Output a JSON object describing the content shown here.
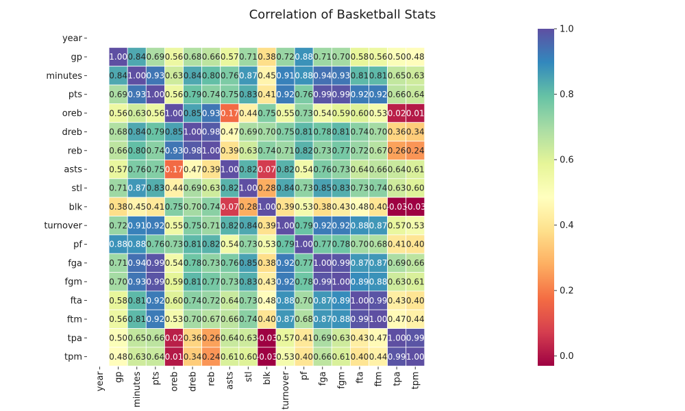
{
  "chart_data": {
    "type": "heatmap",
    "title": "Correlation of Basketball Stats",
    "xlabel": "",
    "ylabel": "",
    "row_labels": [
      "year",
      "gp",
      "minutes",
      "pts",
      "oreb",
      "dreb",
      "reb",
      "asts",
      "stl",
      "blk",
      "turnover",
      "pf",
      "fga",
      "fgm",
      "fta",
      "ftm",
      "tpa",
      "tpm"
    ],
    "col_labels": [
      "year",
      "gp",
      "minutes",
      "pts",
      "oreb",
      "dreb",
      "reb",
      "asts",
      "stl",
      "blk",
      "turnover",
      "pf",
      "fga",
      "fgm",
      "fta",
      "ftm",
      "tpa",
      "tpm"
    ],
    "values": [
      [
        null,
        null,
        null,
        null,
        null,
        null,
        null,
        null,
        null,
        null,
        null,
        null,
        null,
        null,
        null,
        null,
        null,
        null
      ],
      [
        null,
        1.0,
        0.84,
        0.69,
        0.56,
        0.68,
        0.66,
        0.57,
        0.71,
        0.38,
        0.72,
        0.88,
        0.71,
        0.7,
        0.58,
        0.56,
        0.5,
        0.48
      ],
      [
        null,
        0.84,
        1.0,
        0.93,
        0.63,
        0.84,
        0.8,
        0.76,
        0.87,
        0.45,
        0.91,
        0.88,
        0.94,
        0.93,
        0.81,
        0.81,
        0.65,
        0.63
      ],
      [
        null,
        0.69,
        0.93,
        1.0,
        0.56,
        0.79,
        0.74,
        0.75,
        0.83,
        0.41,
        0.92,
        0.76,
        0.99,
        0.99,
        0.92,
        0.92,
        0.66,
        0.64
      ],
      [
        null,
        0.56,
        0.63,
        0.56,
        1.0,
        0.85,
        0.93,
        0.17,
        0.44,
        0.75,
        0.55,
        0.73,
        0.54,
        0.59,
        0.6,
        0.53,
        0.02,
        0.01
      ],
      [
        null,
        0.68,
        0.84,
        0.79,
        0.85,
        1.0,
        0.98,
        0.47,
        0.69,
        0.7,
        0.75,
        0.81,
        0.78,
        0.81,
        0.74,
        0.7,
        0.36,
        0.34
      ],
      [
        null,
        0.66,
        0.8,
        0.74,
        0.93,
        0.98,
        1.0,
        0.39,
        0.63,
        0.74,
        0.71,
        0.82,
        0.73,
        0.77,
        0.72,
        0.67,
        0.26,
        0.24
      ],
      [
        null,
        0.57,
        0.76,
        0.75,
        0.17,
        0.47,
        0.39,
        1.0,
        0.82,
        0.07,
        0.82,
        0.54,
        0.76,
        0.73,
        0.64,
        0.66,
        0.64,
        0.61
      ],
      [
        null,
        0.71,
        0.87,
        0.83,
        0.44,
        0.69,
        0.63,
        0.82,
        1.0,
        0.28,
        0.84,
        0.73,
        0.85,
        0.83,
        0.73,
        0.74,
        0.63,
        0.6
      ],
      [
        null,
        0.38,
        0.45,
        0.41,
        0.75,
        0.7,
        0.74,
        0.07,
        0.28,
        1.0,
        0.39,
        0.53,
        0.38,
        0.43,
        0.48,
        0.4,
        -0.03,
        -0.03
      ],
      [
        null,
        0.72,
        0.91,
        0.92,
        0.55,
        0.75,
        0.71,
        0.82,
        0.84,
        0.39,
        1.0,
        0.79,
        0.92,
        0.92,
        0.88,
        0.87,
        0.57,
        0.53
      ],
      [
        null,
        0.88,
        0.88,
        0.76,
        0.73,
        0.81,
        0.82,
        0.54,
        0.73,
        0.53,
        0.79,
        1.0,
        0.77,
        0.78,
        0.7,
        0.68,
        0.41,
        0.4
      ],
      [
        null,
        0.71,
        0.94,
        0.99,
        0.54,
        0.78,
        0.73,
        0.76,
        0.85,
        0.38,
        0.92,
        0.77,
        1.0,
        0.99,
        0.87,
        0.87,
        0.69,
        0.66
      ],
      [
        null,
        0.7,
        0.93,
        0.99,
        0.59,
        0.81,
        0.77,
        0.73,
        0.83,
        0.43,
        0.92,
        0.78,
        0.99,
        1.0,
        0.89,
        0.88,
        0.63,
        0.61
      ],
      [
        null,
        0.58,
        0.81,
        0.92,
        0.6,
        0.74,
        0.72,
        0.64,
        0.73,
        0.48,
        0.88,
        0.7,
        0.87,
        0.89,
        1.0,
        0.99,
        0.43,
        0.4
      ],
      [
        null,
        0.56,
        0.81,
        0.92,
        0.53,
        0.7,
        0.67,
        0.66,
        0.74,
        0.4,
        0.87,
        0.68,
        0.87,
        0.88,
        0.99,
        1.0,
        0.47,
        0.44
      ],
      [
        null,
        0.5,
        0.65,
        0.66,
        0.02,
        0.36,
        0.26,
        0.64,
        0.63,
        -0.03,
        0.57,
        0.41,
        0.69,
        0.63,
        0.43,
        0.47,
        1.0,
        0.99
      ],
      [
        null,
        0.48,
        0.63,
        0.64,
        0.01,
        0.34,
        0.24,
        0.61,
        0.6,
        -0.03,
        0.53,
        0.4,
        0.66,
        0.61,
        0.4,
        0.44,
        0.99,
        1.0
      ]
    ],
    "colormap": "Spectral",
    "vmin": -0.03,
    "vmax": 1.0,
    "colorbar_ticks": [
      0.0,
      0.2,
      0.4,
      0.6,
      0.8,
      1.0
    ],
    "colorbar_tick_labels": [
      "0.0",
      "0.2",
      "0.4",
      "0.6",
      "0.8",
      "1.0"
    ],
    "annotations": true,
    "value_format": "2 decimals",
    "grid": false,
    "legend": "colorbar-right"
  }
}
